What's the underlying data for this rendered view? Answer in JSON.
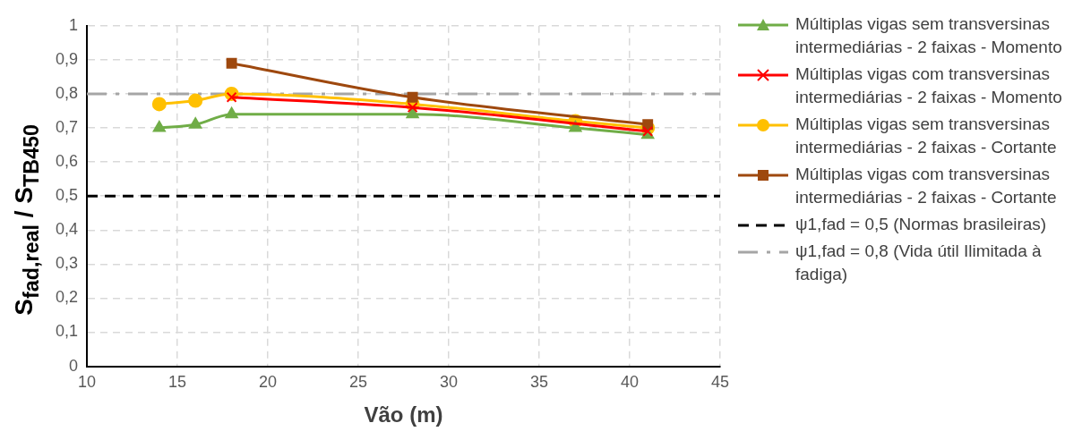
{
  "chart_data": {
    "type": "line",
    "xlabel": "Vão (m)",
    "ylabel": "S$_{fad,real}$ / S$_{TB450}$",
    "xlim": [
      10,
      45
    ],
    "xticks": [
      10,
      15,
      20,
      25,
      30,
      35,
      40,
      45
    ],
    "ylim": [
      0,
      1
    ],
    "yticks": [
      0,
      {
        "value": 0.1,
        "label": "0,1"
      },
      {
        "value": 0.2,
        "label": "0,2"
      },
      {
        "value": 0.3,
        "label": "0,3"
      },
      {
        "value": 0.4,
        "label": "0,4"
      },
      {
        "value": 0.5,
        "label": "0,5"
      },
      {
        "value": 0.6,
        "label": "0,6"
      },
      {
        "value": 0.7,
        "label": "0,7"
      },
      {
        "value": 0.8,
        "label": "0,8"
      },
      {
        "value": 0.9,
        "label": "0,9"
      },
      1
    ],
    "grid": true,
    "legend": "right",
    "series": [
      {
        "name": "Múltiplas vigas sem transversinas intermediárias - 2 faixas - Momento",
        "color": "#70ad47",
        "marker": "triangle",
        "x": [
          14,
          16,
          18,
          28,
          37,
          41
        ],
        "values": [
          0.7,
          0.71,
          0.74,
          0.74,
          0.7,
          0.68
        ]
      },
      {
        "name": "Múltiplas vigas com transversinas intermediárias - 2 faixas - Momento",
        "color": "#ff0000",
        "marker": "cross",
        "x": [
          18,
          28,
          41
        ],
        "values": [
          0.79,
          0.76,
          0.69
        ]
      },
      {
        "name": "Múltiplas vigas sem transversinas intermediárias - 2 faixas - Cortante",
        "color": "#ffc000",
        "marker": "circle",
        "x": [
          14,
          16,
          18,
          28,
          37,
          41
        ],
        "values": [
          0.77,
          0.78,
          0.8,
          0.77,
          0.72,
          0.7
        ]
      },
      {
        "name": "Múltiplas vigas com transversinas intermediárias - 2 faixas - Cortante",
        "color": "#9e480e",
        "marker": "square",
        "x": [
          18,
          28,
          41
        ],
        "values": [
          0.89,
          0.79,
          0.71
        ]
      }
    ],
    "ref_lines": [
      {
        "axis": "y",
        "value": 0.5,
        "label": "ψ1,fad = 0,5 (Normas brasileiras)",
        "color": "#000000",
        "line_style": "dashed"
      },
      {
        "axis": "y",
        "value": 0.8,
        "label": "ψ1,fad = 0,8 (Vida útil Ilimitada à fadiga)",
        "color": "#a5a5a5",
        "line_style": "dashdot"
      }
    ]
  }
}
